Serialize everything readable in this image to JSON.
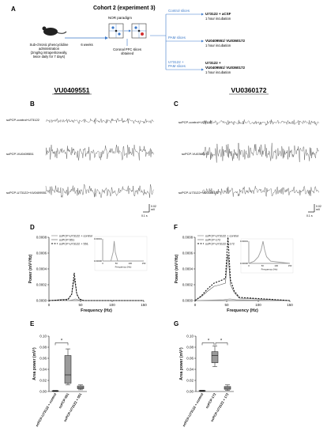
{
  "panels": {
    "A": "A",
    "B": "B",
    "C": "C",
    "D": "D",
    "E": "E",
    "F": "F",
    "G": "G"
  },
  "schematic": {
    "cohort_title": "Cohort 2 (experiment 3)",
    "pcp_line1": "Sub-chronic phencyclidine",
    "pcp_line2": "administration",
    "pcp_line3": "(2mg/kg intraperitoneally,",
    "pcp_line4": "twice daily for 7 days)",
    "weeks": "6 weeks",
    "nor": "NOR paradigm",
    "pfc_line1": "Coronal PFC slices",
    "pfc_line2": "obtained",
    "control_slices": "Control slices",
    "pam_slices": "PAM slices",
    "u_pam_line1": "U73122 +",
    "u_pam_line2": "PAM slices",
    "out1_line1": "U73122 + aCSF",
    "out1_line2": "1 hour incubation",
    "out2_line1": "VU0409551/ VU0360172",
    "out2_line2": "1 hour incubation",
    "out3_line1": "U73122 +",
    "out3_line2": "VU0409551/ VU0360172",
    "out3_line3": "1 hour incubation"
  },
  "columns": {
    "left_title": "VU0409551",
    "right_title": "VU0360172"
  },
  "traces_B": [
    "scPCP-control+U73122",
    "scPCP-VU0409551",
    "scPCP-U73122+VU0409551"
  ],
  "traces_C": [
    "scPCP-control+U73122",
    "scPCP-VU0360172",
    "scPCP-U73122+VU0360172"
  ],
  "scale_bar": {
    "amp": "0.02",
    "unit": "mV",
    "time": "0.1 s"
  },
  "colors": {
    "control": "#9e9e9e",
    "drug": "#5c5c5c",
    "combo": "#111111",
    "box": "#9a9a9a",
    "arrow": "#3a78c9"
  },
  "chart_data": [
    {
      "panel": "D",
      "type": "line",
      "xlabel": "Frequency (Hz)",
      "ylabel": "Power (mV²/Hz)",
      "xlim": [
        0,
        150
      ],
      "ylim": [
        0,
        0.0008
      ],
      "x_ticks": [
        0,
        50,
        100,
        150
      ],
      "y_ticks": [
        "0.0000",
        "0.0002",
        "0.0004",
        "0.0006",
        "0.0008"
      ],
      "legend": [
        "scPCP-U73122 + control",
        "scPCP-551",
        "scPCP-U73122 + 551"
      ],
      "series": [
        {
          "name": "scPCP-U73122 + control",
          "x": [
            0,
            30,
            38,
            42,
            46,
            55,
            150
          ],
          "y": [
            0,
            0,
            1e-05,
            2e-05,
            1e-05,
            0,
            0
          ]
        },
        {
          "name": "scPCP-551",
          "x": [
            0,
            30,
            36,
            40,
            44,
            48,
            55,
            150
          ],
          "y": [
            0,
            2e-05,
            8e-05,
            0.00028,
            9e-05,
            2e-05,
            0,
            0
          ]
        },
        {
          "name": "scPCP-U73122 + 551",
          "x": [
            0,
            30,
            36,
            40,
            44,
            48,
            55,
            150
          ],
          "y": [
            0,
            1e-05,
            8e-05,
            0.00035,
            8e-05,
            2e-05,
            0,
            0
          ]
        }
      ],
      "inset": {
        "ylim": [
          0,
          1e-05
        ],
        "y_ticks": [
          "0.00000",
          "0.00001"
        ],
        "x_ticks": [
          0,
          50,
          100,
          150
        ],
        "xlabel": "Frequency (Hz)",
        "x": [
          0,
          30,
          38,
          42,
          46,
          55,
          150
        ],
        "y": [
          0,
          0,
          4e-06,
          9e-06,
          4e-06,
          0,
          0
        ]
      }
    },
    {
      "panel": "E",
      "type": "box",
      "ylabel": "Area power (mV²)",
      "ylim": [
        0,
        0.1
      ],
      "y_ticks": [
        "0.00",
        "0.02",
        "0.04",
        "0.06",
        "0.08",
        "0.10"
      ],
      "categories": [
        "scPCP-U73122 + control",
        "scPCP-551",
        "scPCP-U73122 + 551"
      ],
      "boxes": [
        {
          "min": 0.0,
          "q1": 0.0005,
          "median": 0.001,
          "q3": 0.0015,
          "max": 0.002
        },
        {
          "min": 0.012,
          "q1": 0.015,
          "median": 0.03,
          "q3": 0.065,
          "max": 0.077
        },
        {
          "min": 0.003,
          "q1": 0.005,
          "median": 0.007,
          "q3": 0.01,
          "max": 0.012
        }
      ],
      "significance": "*"
    },
    {
      "panel": "F",
      "type": "line",
      "xlabel": "Frequency (Hz)",
      "ylabel": "Power (mV²/Hz)",
      "xlim": [
        0,
        150
      ],
      "ylim": [
        0,
        0.0008
      ],
      "x_ticks": [
        0,
        50,
        100,
        150
      ],
      "y_ticks": [
        "0.0000",
        "0.0002",
        "0.0004",
        "0.0006",
        "0.0008"
      ],
      "legend": [
        "scPCP-U73122 + control",
        "scPCP-172",
        "scPCP-U73122 + 172"
      ],
      "series": [
        {
          "name": "scPCP-U73122 + control",
          "x": [
            0,
            45,
            55,
            65,
            150
          ],
          "y": [
            0,
            1e-05,
            2e-05,
            1e-05,
            0
          ]
        },
        {
          "name": "scPCP-172",
          "x": [
            0,
            10,
            20,
            30,
            40,
            48,
            52,
            56,
            62,
            70,
            150
          ],
          "y": [
            0,
            5e-05,
            0.00012,
            0.00018,
            0.0002,
            0.00022,
            0.00058,
            0.0002,
            0.0001,
            3e-05,
            0
          ]
        },
        {
          "name": "scPCP-U73122 + 172",
          "x": [
            0,
            10,
            20,
            30,
            40,
            48,
            52,
            56,
            62,
            70,
            150
          ],
          "y": [
            0,
            6e-05,
            0.00015,
            0.00022,
            0.00025,
            0.00028,
            0.0008,
            0.00026,
            0.00012,
            4e-05,
            0
          ]
        }
      ],
      "inset": {
        "ylim": [
          0,
          1e-05
        ],
        "y_ticks": [
          "0.00000",
          "0.00001"
        ],
        "x_ticks": [
          0,
          50,
          100,
          150
        ],
        "xlabel": "Frequency (Hz)",
        "x": [
          0,
          20,
          35,
          45,
          52,
          58,
          65,
          80,
          150
        ],
        "y": [
          0,
          1e-06,
          3e-06,
          6e-06,
          1e-05,
          6e-06,
          3e-06,
          1e-06,
          0
        ]
      }
    },
    {
      "panel": "G",
      "type": "box",
      "ylabel": "Area power (mV²)",
      "ylim": [
        0,
        0.1
      ],
      "y_ticks": [
        "0.00",
        "0.02",
        "0.04",
        "0.06",
        "0.08",
        "0.10"
      ],
      "categories": [
        "scPCP-U73122 + control",
        "scPCP-172",
        "scPCP-U73122 + 172"
      ],
      "boxes": [
        {
          "min": 0.0,
          "q1": 0.0008,
          "median": 0.0012,
          "q3": 0.0018,
          "max": 0.0022
        },
        {
          "min": 0.045,
          "q1": 0.052,
          "median": 0.065,
          "q3": 0.072,
          "max": 0.082
        },
        {
          "min": 0.002,
          "q1": 0.004,
          "median": 0.006,
          "q3": 0.009,
          "max": 0.012
        }
      ],
      "significance": [
        "*",
        "*"
      ]
    }
  ]
}
